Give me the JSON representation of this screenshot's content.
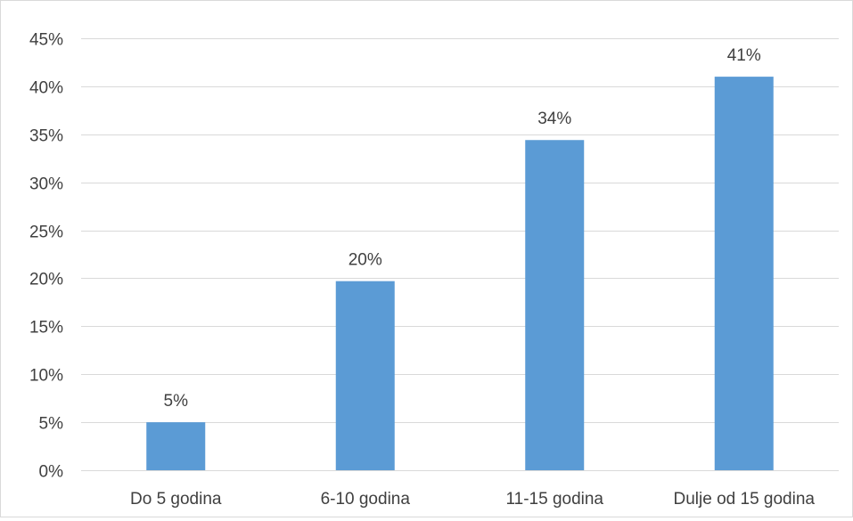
{
  "chart_data": {
    "type": "bar",
    "title": "",
    "xlabel": "",
    "ylabel": "",
    "categories": [
      "Do 5 godina",
      "6-10 godina",
      "11-15 godina",
      "Dulje od 15 godina"
    ],
    "values": [
      5,
      19.7,
      34.4,
      41
    ],
    "data_labels": [
      "5%",
      "20%",
      "34%",
      "41%"
    ],
    "ylim": [
      0,
      45
    ],
    "y_ticks": [
      0,
      5,
      10,
      15,
      20,
      25,
      30,
      35,
      40,
      45
    ],
    "y_tick_labels": [
      "0%",
      "5%",
      "10%",
      "15%",
      "20%",
      "25%",
      "30%",
      "35%",
      "40%",
      "45%"
    ],
    "grid": true,
    "legend": "none",
    "bar_color": "#5b9bd5",
    "gridline_color": "#d9d9d9",
    "text_color": "#404040"
  }
}
